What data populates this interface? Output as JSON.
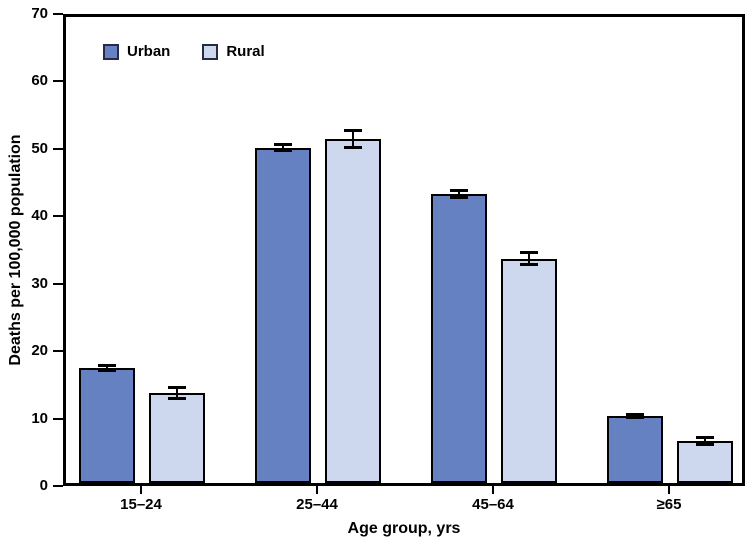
{
  "chart_data": {
    "type": "bar",
    "title": "",
    "xlabel": "Age group, yrs",
    "ylabel": "Deaths per 100,000 population",
    "categories": [
      "15–24",
      "25–44",
      "45–64",
      "≥65"
    ],
    "series": [
      {
        "name": "Urban",
        "color": "#6581C1",
        "values": [
          17.3,
          50.4,
          43.4,
          10.1
        ],
        "errors": [
          0.5,
          0.5,
          0.6,
          0.3
        ]
      },
      {
        "name": "Rural",
        "color": "#CDD7ED",
        "values": [
          13.6,
          51.7,
          33.7,
          6.3
        ],
        "errors": [
          0.9,
          1.3,
          1.0,
          0.6
        ]
      }
    ],
    "ylim": [
      0,
      70
    ],
    "yticks": [
      0,
      10,
      20,
      30,
      40,
      50,
      60,
      70
    ],
    "grid": false,
    "error_bars": true,
    "legend_position": "inside-top-left",
    "colors": {
      "axis": "#000000",
      "bar_outline": "#000000",
      "error_bar": "#000000",
      "swatch_border": "#242b42",
      "background": "#ffffff"
    }
  }
}
